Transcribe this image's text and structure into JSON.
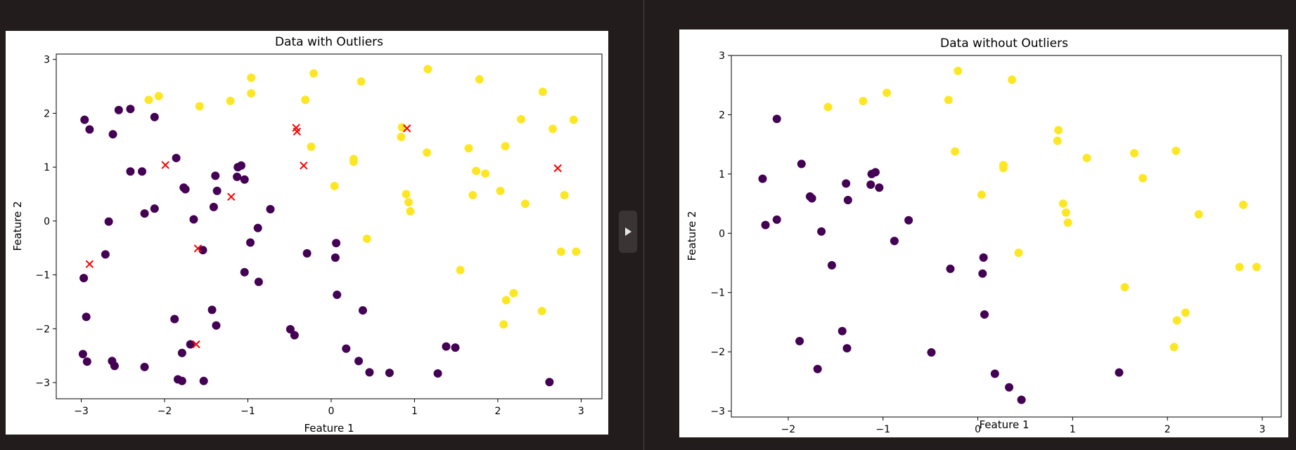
{
  "chart_data": [
    {
      "type": "scatter",
      "title": "Data with Outliers",
      "xlabel": "Feature 1",
      "ylabel": "Feature 2",
      "xlim": [
        -3.3,
        3.25
      ],
      "ylim": [
        -3.3,
        3.1
      ],
      "xticks": [
        -3,
        -2,
        -1,
        0,
        1,
        2,
        3
      ],
      "yticks": [
        -3,
        -2,
        -1,
        0,
        1,
        2,
        3
      ],
      "xtick_labels": [
        "−3",
        "−2",
        "−1",
        "0",
        "1",
        "2",
        "3"
      ],
      "ytick_labels": [
        "−3",
        "−2",
        "−1",
        "0",
        "1",
        "2",
        "3"
      ],
      "grid": false,
      "colors": {
        "class0": "#440154",
        "class1": "#fde725",
        "outlier": "#ff0000"
      },
      "class0": [
        [
          -2.96,
          1.88
        ],
        [
          -2.9,
          1.7
        ],
        [
          -2.55,
          2.06
        ],
        [
          -2.41,
          2.08
        ],
        [
          -2.62,
          1.61
        ],
        [
          -2.12,
          1.93
        ],
        [
          -1.86,
          1.17
        ],
        [
          -2.41,
          0.92
        ],
        [
          -2.27,
          0.92
        ],
        [
          -1.77,
          0.62
        ],
        [
          -1.75,
          0.59
        ],
        [
          -1.39,
          0.84
        ],
        [
          -1.12,
          1.0
        ],
        [
          -1.08,
          1.03
        ],
        [
          -1.13,
          0.82
        ],
        [
          -1.04,
          0.77
        ],
        [
          -1.37,
          0.56
        ],
        [
          -2.24,
          0.14
        ],
        [
          -2.12,
          0.23
        ],
        [
          -1.65,
          0.03
        ],
        [
          -1.41,
          0.26
        ],
        [
          -0.73,
          0.22
        ],
        [
          -2.67,
          -0.01
        ],
        [
          -2.71,
          -0.62
        ],
        [
          -2.97,
          -1.06
        ],
        [
          -2.94,
          -1.78
        ],
        [
          -1.54,
          -0.54
        ],
        [
          -0.88,
          -0.13
        ],
        [
          -0.97,
          -0.4
        ],
        [
          -1.04,
          -0.95
        ],
        [
          -0.87,
          -1.13
        ],
        [
          -0.29,
          -0.6
        ],
        [
          0.06,
          -0.41
        ],
        [
          0.05,
          -0.68
        ],
        [
          0.07,
          -1.37
        ],
        [
          0.38,
          -1.66
        ],
        [
          -1.43,
          -1.65
        ],
        [
          -1.38,
          -1.94
        ],
        [
          -1.88,
          -1.82
        ],
        [
          -0.49,
          -2.01
        ],
        [
          -0.44,
          -2.12
        ],
        [
          -1.79,
          -2.45
        ],
        [
          -1.69,
          -2.29
        ],
        [
          -2.98,
          -2.47
        ],
        [
          -2.93,
          -2.61
        ],
        [
          -2.63,
          -2.6
        ],
        [
          -2.6,
          -2.69
        ],
        [
          -2.24,
          -2.71
        ],
        [
          -1.84,
          -2.94
        ],
        [
          -1.79,
          -2.97
        ],
        [
          -1.53,
          -2.97
        ],
        [
          0.18,
          -2.37
        ],
        [
          0.33,
          -2.6
        ],
        [
          0.46,
          -2.81
        ],
        [
          0.7,
          -2.82
        ],
        [
          1.28,
          -2.83
        ],
        [
          1.38,
          -2.33
        ],
        [
          1.49,
          -2.35
        ],
        [
          2.62,
          -2.99
        ]
      ],
      "class1": [
        [
          -2.19,
          2.25
        ],
        [
          -2.07,
          2.32
        ],
        [
          -1.58,
          2.13
        ],
        [
          -1.21,
          2.23
        ],
        [
          -0.96,
          2.66
        ],
        [
          -0.96,
          2.37
        ],
        [
          -0.31,
          2.25
        ],
        [
          -0.21,
          2.74
        ],
        [
          0.36,
          2.59
        ],
        [
          1.16,
          2.82
        ],
        [
          1.78,
          2.63
        ],
        [
          2.54,
          2.4
        ],
        [
          2.28,
          1.89
        ],
        [
          2.66,
          1.71
        ],
        [
          2.91,
          1.88
        ],
        [
          0.85,
          1.74
        ],
        [
          0.84,
          1.56
        ],
        [
          1.15,
          1.27
        ],
        [
          1.65,
          1.35
        ],
        [
          2.09,
          1.39
        ],
        [
          -0.24,
          1.38
        ],
        [
          0.27,
          1.15
        ],
        [
          0.27,
          1.1
        ],
        [
          1.74,
          0.93
        ],
        [
          1.85,
          0.88
        ],
        [
          0.04,
          0.65
        ],
        [
          0.9,
          0.5
        ],
        [
          0.93,
          0.35
        ],
        [
          0.95,
          0.18
        ],
        [
          1.7,
          0.48
        ],
        [
          2.03,
          0.56
        ],
        [
          2.33,
          0.32
        ],
        [
          2.8,
          0.48
        ],
        [
          0.43,
          -0.33
        ],
        [
          2.76,
          -0.57
        ],
        [
          2.94,
          -0.57
        ],
        [
          1.55,
          -0.91
        ],
        [
          2.19,
          -1.34
        ],
        [
          2.1,
          -1.47
        ],
        [
          2.53,
          -1.67
        ],
        [
          2.07,
          -1.92
        ]
      ],
      "outliers": [
        [
          -1.99,
          1.04
        ],
        [
          -1.2,
          0.45
        ],
        [
          -0.42,
          1.73
        ],
        [
          -0.41,
          1.66
        ],
        [
          -0.33,
          1.03
        ],
        [
          0.91,
          1.72
        ],
        [
          2.72,
          0.98
        ],
        [
          -2.9,
          -0.8
        ],
        [
          -1.6,
          -0.51
        ],
        [
          -1.62,
          -2.29
        ]
      ]
    },
    {
      "type": "scatter",
      "title": "Data without Outliers",
      "xlabel": "Feature 1",
      "ylabel": "Feature 2",
      "xlim": [
        -2.6,
        3.2
      ],
      "ylim": [
        -3.1,
        3.0
      ],
      "xticks": [
        -2,
        -1,
        0,
        1,
        2,
        3
      ],
      "yticks": [
        -3,
        -2,
        -1,
        0,
        1,
        2,
        3
      ],
      "xtick_labels": [
        "−2",
        "−1",
        "0",
        "1",
        "2",
        "3"
      ],
      "ytick_labels": [
        "−3",
        "−2",
        "−1",
        "0",
        "1",
        "2",
        "3"
      ],
      "grid": false,
      "colors": {
        "class0": "#440154",
        "class1": "#fde725"
      },
      "class0": [
        [
          -2.12,
          1.93
        ],
        [
          -2.27,
          0.92
        ],
        [
          -1.86,
          1.17
        ],
        [
          -1.77,
          0.62
        ],
        [
          -1.75,
          0.59
        ],
        [
          -1.39,
          0.84
        ],
        [
          -1.13,
          0.82
        ],
        [
          -1.12,
          1.0
        ],
        [
          -1.08,
          1.03
        ],
        [
          -1.04,
          0.77
        ],
        [
          -1.37,
          0.56
        ],
        [
          -2.24,
          0.14
        ],
        [
          -2.12,
          0.23
        ],
        [
          -1.65,
          0.03
        ],
        [
          -0.73,
          0.22
        ],
        [
          -0.88,
          -0.13
        ],
        [
          -1.54,
          -0.54
        ],
        [
          -0.29,
          -0.6
        ],
        [
          0.06,
          -0.41
        ],
        [
          0.05,
          -0.68
        ],
        [
          0.07,
          -1.37
        ],
        [
          -1.43,
          -1.65
        ],
        [
          -1.38,
          -1.94
        ],
        [
          -1.88,
          -1.82
        ],
        [
          -0.49,
          -2.01
        ],
        [
          -1.69,
          -2.29
        ],
        [
          0.18,
          -2.37
        ],
        [
          0.33,
          -2.6
        ],
        [
          0.46,
          -2.81
        ],
        [
          1.49,
          -2.35
        ]
      ],
      "class1": [
        [
          -0.21,
          2.74
        ],
        [
          0.36,
          2.59
        ],
        [
          -0.96,
          2.37
        ],
        [
          -0.31,
          2.25
        ],
        [
          -1.21,
          2.23
        ],
        [
          -1.58,
          2.13
        ],
        [
          0.85,
          1.74
        ],
        [
          0.84,
          1.56
        ],
        [
          1.15,
          1.27
        ],
        [
          1.65,
          1.35
        ],
        [
          2.09,
          1.39
        ],
        [
          -0.24,
          1.38
        ],
        [
          0.27,
          1.15
        ],
        [
          0.27,
          1.1
        ],
        [
          1.74,
          0.93
        ],
        [
          0.04,
          0.65
        ],
        [
          0.9,
          0.5
        ],
        [
          0.93,
          0.35
        ],
        [
          0.95,
          0.18
        ],
        [
          2.33,
          0.32
        ],
        [
          2.8,
          0.48
        ],
        [
          0.43,
          -0.33
        ],
        [
          2.76,
          -0.57
        ],
        [
          2.94,
          -0.57
        ],
        [
          1.55,
          -0.91
        ],
        [
          2.19,
          -1.34
        ],
        [
          2.1,
          -1.47
        ],
        [
          2.07,
          -1.92
        ]
      ]
    }
  ],
  "icons": {
    "collapse_handle": "play-triangle-icon"
  }
}
